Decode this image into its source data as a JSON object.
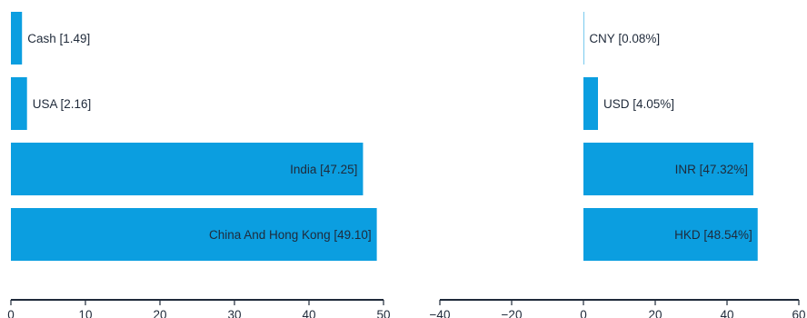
{
  "chart_data": [
    {
      "type": "bar",
      "orientation": "horizontal",
      "title": "",
      "xlabel": "",
      "ylabel": "",
      "xlim": [
        0,
        50
      ],
      "ticks": [
        0,
        10,
        20,
        30,
        40,
        50
      ],
      "grid": false,
      "bar_color": "#0b9ee0",
      "categories": [
        "Cash",
        "USA",
        "India",
        "China And Hong Kong"
      ],
      "values": [
        1.49,
        2.16,
        47.25,
        49.1
      ],
      "labels": [
        "Cash [1.49]",
        "USA [2.16]",
        "India [47.25]",
        "China And Hong Kong [49.10]"
      ]
    },
    {
      "type": "bar",
      "orientation": "horizontal",
      "title": "",
      "xlabel": "",
      "ylabel": "",
      "xlim": [
        -40,
        60
      ],
      "ticks": [
        -40,
        -20,
        0,
        20,
        40,
        60
      ],
      "grid": false,
      "bar_color": "#0b9ee0",
      "categories": [
        "CNY",
        "USD",
        "INR",
        "HKD"
      ],
      "values": [
        0.08,
        4.05,
        47.32,
        48.54
      ],
      "labels": [
        "CNY [0.08%]",
        "USD [4.05%]",
        "INR [47.32%]",
        "HKD [48.54%]"
      ]
    }
  ]
}
